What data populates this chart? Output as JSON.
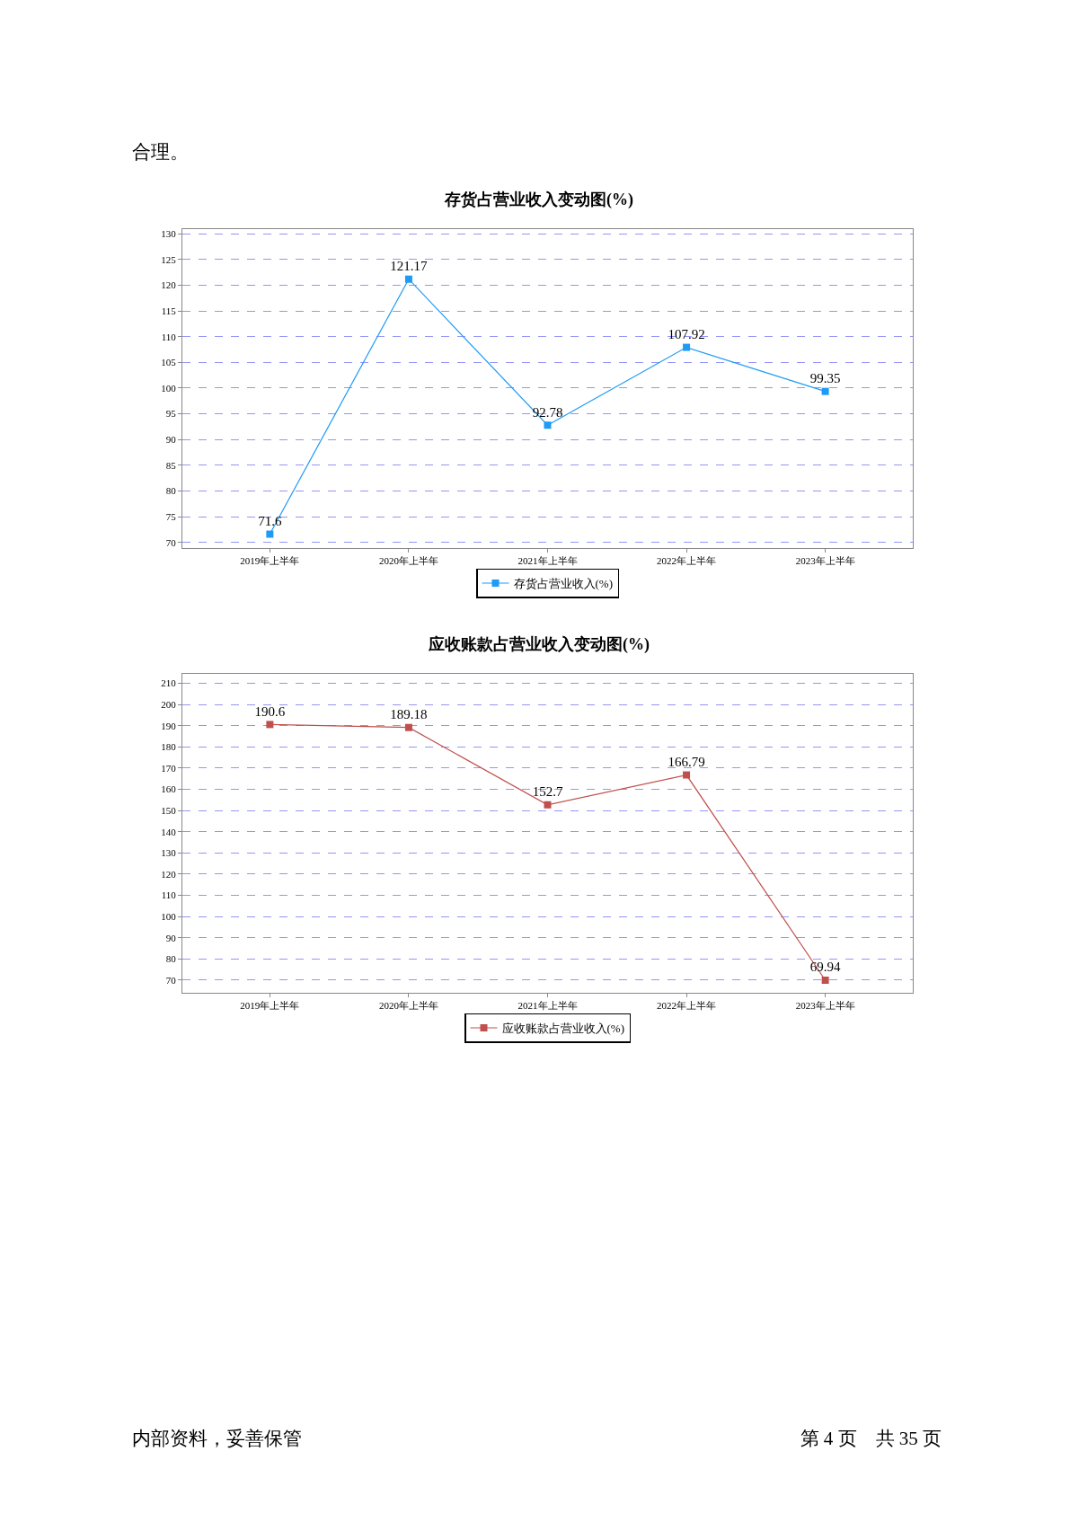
{
  "chart_data": [
    {
      "type": "line",
      "title": "存货占营业收入变动图(%)",
      "annotations": [
        "合理。"
      ],
      "categories": [
        "2019年上半年",
        "2020年上半年",
        "2021年上半年",
        "2022年上半年",
        "2023年上半年"
      ],
      "series": [
        {
          "name": "存货占营业收入(%)",
          "color": "#1e9bf5",
          "values": [
            71.6,
            121.17,
            92.78,
            107.92,
            99.35
          ]
        }
      ],
      "ylim": [
        68.9,
        130.9
      ],
      "yticks": [
        70,
        75,
        80,
        85,
        90,
        95,
        100,
        105,
        110,
        115,
        120,
        125,
        130
      ],
      "grid": "y",
      "legend": "bottom",
      "marker": "square",
      "line_style": "solid",
      "data_labels": true
    },
    {
      "type": "line",
      "title": "应收账款占营业收入变动图(%)",
      "annotations": [
        "内部资料，妥善保管",
        "第 4 页　共 35 页"
      ],
      "categories": [
        "2019年上半年",
        "2020年上半年",
        "2021年上半年",
        "2022年上半年",
        "2023年上半年"
      ],
      "series": [
        {
          "name": "应收账款占营业收入(%)",
          "color": "#c0504d",
          "values": [
            190.6,
            189.18,
            152.7,
            166.79,
            69.94
          ]
        }
      ],
      "ylim": [
        64,
        214.5
      ],
      "yticks": [
        70,
        80,
        90,
        100,
        110,
        120,
        130,
        140,
        150,
        160,
        170,
        180,
        190,
        200,
        210
      ],
      "grid": "y",
      "legend": "bottom",
      "marker": "square",
      "line_style": "solid",
      "data_labels": true
    }
  ]
}
